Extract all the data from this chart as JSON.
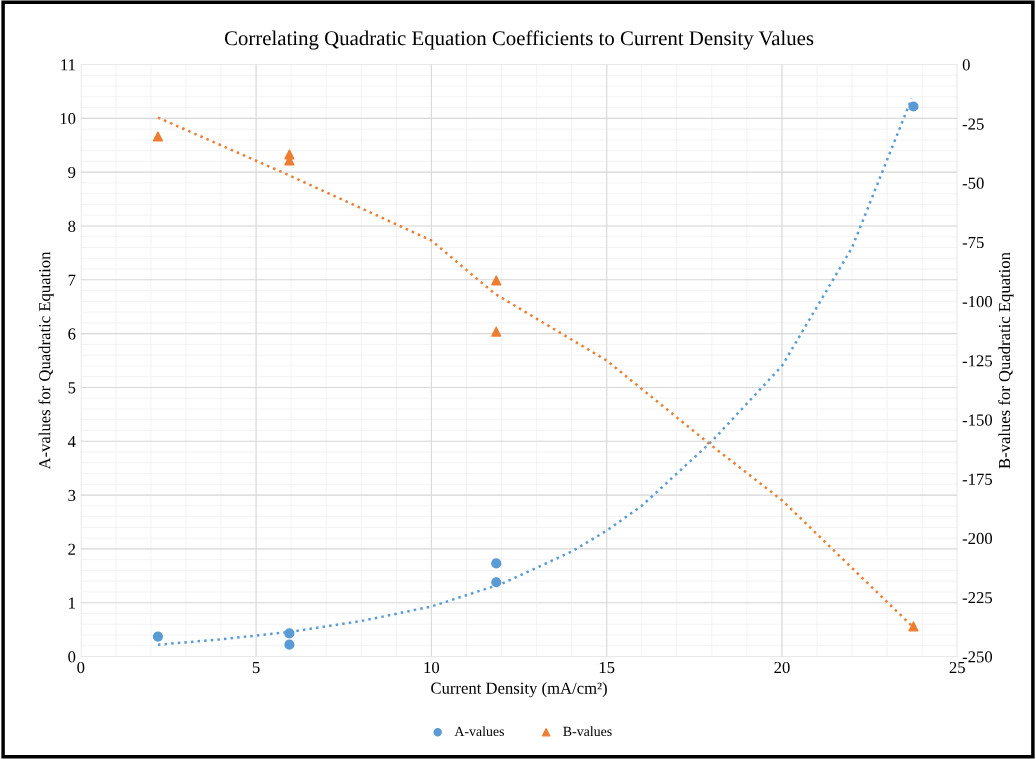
{
  "chart_data": {
    "type": "scatter",
    "title": "Correlating Quadratic Equation Coefficients to Current Density Values",
    "xlabel": "Current Density (mA/cm²)",
    "ylabel": "A-values for Quadratic Equation",
    "y2label": "B-values for Quadratic Equation",
    "xlim": [
      0,
      25
    ],
    "xticks": [
      0,
      5,
      10,
      15,
      20,
      25
    ],
    "ylim": [
      0,
      11
    ],
    "yticks": [
      0,
      1,
      2,
      3,
      4,
      5,
      6,
      7,
      8,
      9,
      10,
      11
    ],
    "y2lim": [
      -250,
      0
    ],
    "y2ticks": [
      -250,
      -225,
      -200,
      -175,
      -150,
      -125,
      -100,
      -75,
      -50,
      -25,
      0
    ],
    "grid": true,
    "legend": "bottom",
    "series": [
      {
        "name": "A-values",
        "marker": "circle",
        "color": "#5b9bd5",
        "x": [
          2.2,
          5.95,
          5.95,
          11.85,
          11.85,
          23.75
        ],
        "values": [
          0.37,
          0.43,
          0.22,
          1.73,
          1.38,
          10.22
        ]
      },
      {
        "name": "B-values",
        "marker": "triangle",
        "axis": "y2",
        "color": "#ed7d31",
        "x": [
          2.2,
          5.95,
          5.95,
          11.85,
          11.85,
          23.75
        ],
        "values": [
          -30.4,
          -38,
          -40.5,
          -91.2,
          -112.8,
          -237.3
        ]
      },
      {
        "type": "line",
        "line_style": "dotted",
        "color": "#5b9bd5",
        "x": [
          2.2,
          4,
          6,
          8,
          10,
          12,
          14,
          15,
          16,
          18,
          20,
          22,
          23.7
        ],
        "values": [
          0.22,
          0.32,
          0.46,
          0.66,
          0.93,
          1.35,
          1.95,
          2.34,
          2.8,
          4.0,
          5.4,
          7.6,
          10.37
        ]
      },
      {
        "type": "line",
        "line_style": "dotted",
        "axis": "y2",
        "color": "#ed7d31",
        "x": [
          2.2,
          5.9,
          10,
          11.8,
          15,
          18,
          20,
          23.7
        ],
        "values": [
          -22.4,
          -46.5,
          -74.3,
          -96.7,
          -125,
          -161,
          -184,
          -237
        ]
      }
    ]
  }
}
